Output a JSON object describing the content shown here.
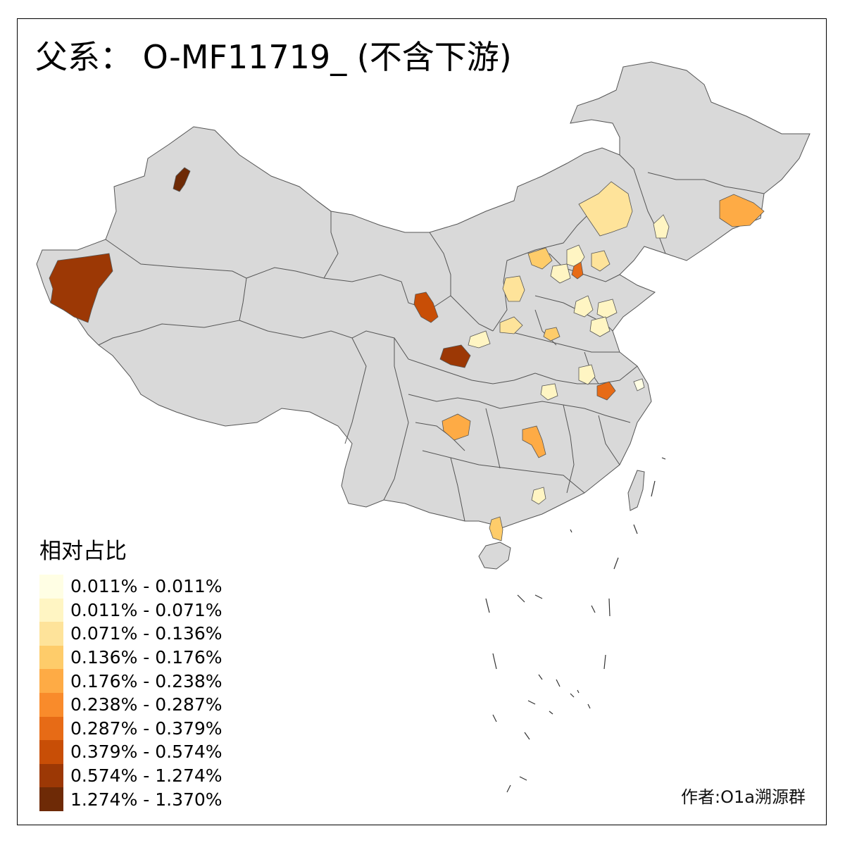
{
  "map": {
    "title": "父系： O-MF11719_ (不含下游)",
    "author": "作者:O1a溯源群",
    "base_color": "#d9d9d9",
    "border_color": "#555555",
    "legend": {
      "title": "相对占比",
      "bins": [
        {
          "label": "0.011% - 0.011%",
          "color": "#fffee4"
        },
        {
          "label": "0.011% - 0.071%",
          "color": "#fff5c3"
        },
        {
          "label": "0.071% - 0.136%",
          "color": "#fee39a"
        },
        {
          "label": "0.136% - 0.176%",
          "color": "#fecc6a"
        },
        {
          "label": "0.176% - 0.238%",
          "color": "#feab45"
        },
        {
          "label": "0.238% - 0.287%",
          "color": "#f98b2b"
        },
        {
          "label": "0.287% - 0.379%",
          "color": "#e76b16"
        },
        {
          "label": "0.379% - 0.574%",
          "color": "#c84e06"
        },
        {
          "label": "0.574% - 1.274%",
          "color": "#9c3805"
        },
        {
          "label": "1.274% - 1.370%",
          "color": "#6e2a06"
        }
      ]
    }
  }
}
